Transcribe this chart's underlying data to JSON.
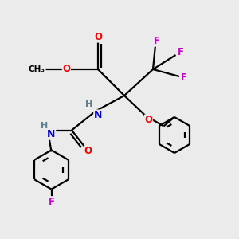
{
  "background_color": "#ebebeb",
  "atom_colors": {
    "C": "#000000",
    "N": "#0000cd",
    "O": "#ff0000",
    "F": "#cc00cc",
    "H": "#5f8090"
  },
  "bond_color": "#000000",
  "figsize": [
    3.0,
    3.0
  ],
  "dpi": 100,
  "lw": 1.6
}
